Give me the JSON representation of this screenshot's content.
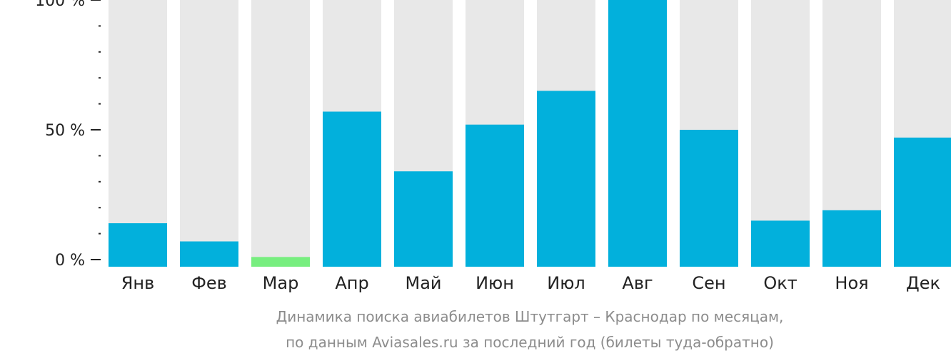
{
  "chart_data": {
    "type": "bar",
    "categories": [
      "Янв",
      "Фев",
      "Мар",
      "Апр",
      "Май",
      "Июн",
      "Июл",
      "Авг",
      "Сен",
      "Окт",
      "Ноя",
      "Дек"
    ],
    "values": [
      14,
      7,
      1,
      57,
      34,
      52,
      65,
      100,
      50,
      15,
      19,
      47
    ],
    "highlight_index": 2,
    "ylim": [
      0,
      100
    ],
    "yticks": [
      {
        "value": 0,
        "label": "0 %"
      },
      {
        "value": 50,
        "label": "50 %"
      },
      {
        "value": 100,
        "label": "100 %"
      }
    ],
    "minor_tick_step": 10,
    "grid": false,
    "legend": "none",
    "caption_lines": [
      "Динамика поиска авиабилетов Штутгарт – Краснодар по месяцам,",
      "по данным Aviasales.ru за последний год (билеты туда-обратно)"
    ],
    "colors": {
      "bar": "#02b0dc",
      "highlight": "#77ee7f",
      "track": "#e8e8e8",
      "axis": "#222222",
      "caption": "#8c8c8c"
    }
  }
}
